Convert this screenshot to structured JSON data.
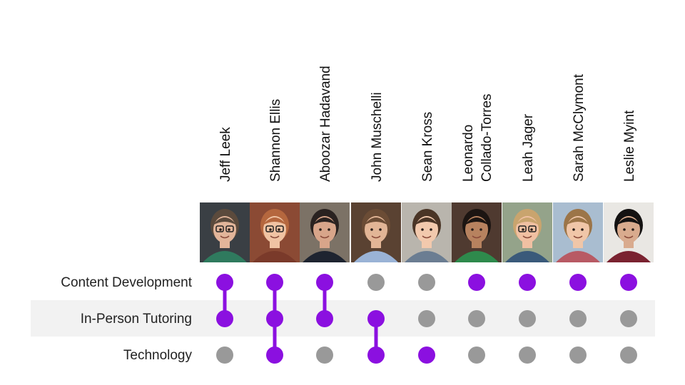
{
  "chart_data": {
    "type": "matrix",
    "title": "",
    "people": [
      {
        "name": [
          "Jeff Leek"
        ],
        "avatar": {
          "bg": "#3a3f44",
          "skin": "#e2b59a",
          "hair": "#5b4a3c",
          "shirt": "#2f7a5e",
          "glasses": true
        }
      },
      {
        "name": [
          "Shannon Ellis"
        ],
        "avatar": {
          "bg": "#8b4a34",
          "skin": "#f0c3a3",
          "hair": "#b5673e",
          "shirt": "#7a3a2a",
          "glasses": true
        }
      },
      {
        "name": [
          "Aboozar Hadavand"
        ],
        "avatar": {
          "bg": "#7c7266",
          "skin": "#d8a58a",
          "hair": "#2a2220",
          "shirt": "#1e2430",
          "glasses": false
        }
      },
      {
        "name": [
          "John Muschelli"
        ],
        "avatar": {
          "bg": "#5a4232",
          "skin": "#e2b596",
          "hair": "#6b4c35",
          "shirt": "#9ab3d6",
          "glasses": false
        }
      },
      {
        "name": [
          "Sean Kross"
        ],
        "avatar": {
          "bg": "#b9b5ad",
          "skin": "#f2c9ad",
          "hair": "#4a3526",
          "shirt": "#6b7d92",
          "glasses": false
        }
      },
      {
        "name": [
          "Leonardo",
          "Collado-Torres"
        ],
        "avatar": {
          "bg": "#4f3a30",
          "skin": "#b7825f",
          "hair": "#1c1512",
          "shirt": "#2e8a4c",
          "glasses": false
        }
      },
      {
        "name": [
          "Leah Jager"
        ],
        "avatar": {
          "bg": "#94a38a",
          "skin": "#f0c0a2",
          "hair": "#c9a46e",
          "shirt": "#3a5a7a",
          "glasses": true
        }
      },
      {
        "name": [
          "Sarah McClymont"
        ],
        "avatar": {
          "bg": "#a9bdd0",
          "skin": "#f0c6a8",
          "hair": "#9c7548",
          "shirt": "#b85a64",
          "glasses": false
        }
      },
      {
        "name": [
          "Leslie Myint"
        ],
        "avatar": {
          "bg": "#e9e7e3",
          "skin": "#d9ab8e",
          "hair": "#141212",
          "shirt": "#7a2230",
          "glasses": false
        }
      }
    ],
    "categories": [
      "Content Development",
      "In-Person Tutoring",
      "Technology"
    ],
    "membership": [
      [
        true,
        true,
        false
      ],
      [
        true,
        true,
        true
      ],
      [
        true,
        true,
        false
      ],
      [
        false,
        true,
        true
      ],
      [
        false,
        false,
        true
      ],
      [
        true,
        false,
        false
      ],
      [
        true,
        false,
        false
      ],
      [
        true,
        false,
        false
      ],
      [
        true,
        false,
        false
      ]
    ],
    "colors": {
      "active": "#8b10e0",
      "inactive": "#999999",
      "band": "#f2f2f2",
      "connector": "#8b10e0"
    }
  }
}
